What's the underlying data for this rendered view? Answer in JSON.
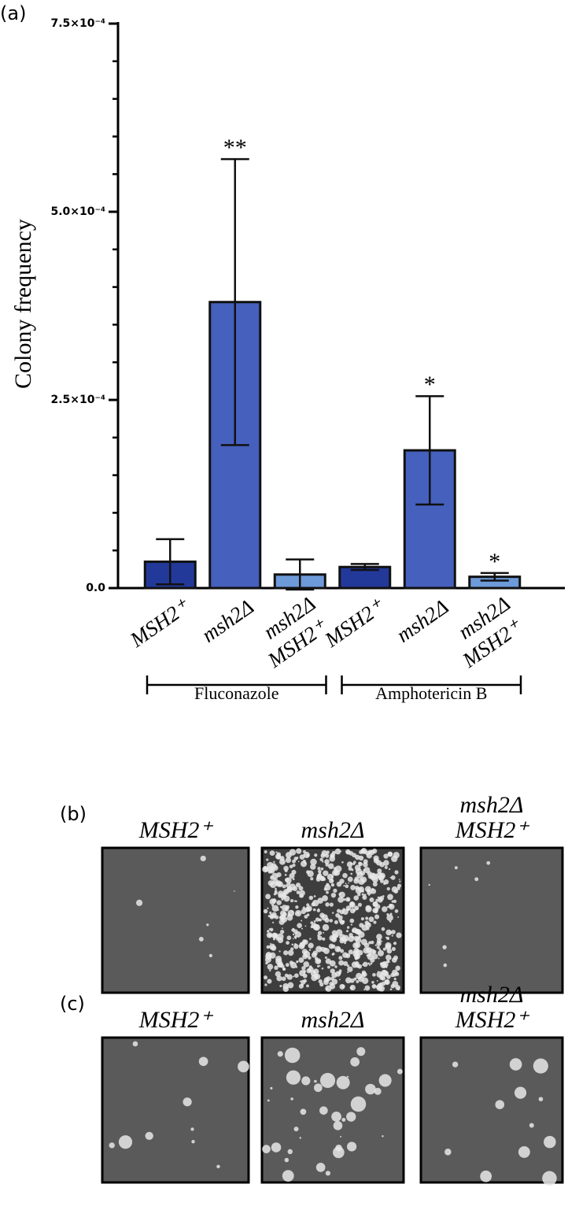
{
  "chart_data": {
    "type": "bar",
    "panel_label": "(a)",
    "ylabel": "Colony frequency",
    "categories": [
      [
        "MSH2⁺"
      ],
      [
        "msh2Δ"
      ],
      [
        "msh2Δ",
        "MSH2⁺"
      ],
      [
        "MSH2⁺"
      ],
      [
        "msh2Δ"
      ],
      [
        "msh2Δ",
        "MSH2⁺"
      ]
    ],
    "values": [
      3.5e-05,
      0.00038,
      1.8e-05,
      2.8e-05,
      0.000183,
      1.5e-05
    ],
    "errors": [
      3e-05,
      0.00019,
      2e-05,
      4e-06,
      7.2e-05,
      5e-06
    ],
    "colors": [
      "#22399a",
      "#4560bd",
      "#6d9ad8",
      "#22399a",
      "#4560bd",
      "#6d9ad8"
    ],
    "significance": [
      null,
      "**",
      null,
      null,
      "*",
      "*"
    ],
    "groups": [
      {
        "name": "Fluconazole",
        "count": 3
      },
      {
        "name": "Amphotericin B",
        "count": 3
      }
    ],
    "ylim": [
      0,
      0.00075
    ],
    "yticks": [
      {
        "value": 0,
        "label": "0.0"
      },
      {
        "value": 0.00025,
        "label": "2.5×10⁻⁴"
      },
      {
        "value": 0.0005,
        "label": "5.0×10⁻⁴"
      },
      {
        "value": 0.00075,
        "label": "7.5×10⁻⁴"
      }
    ],
    "yminor_ticks": [
      5e-05,
      0.0001,
      0.00015,
      0.0002,
      0.0003,
      0.00035,
      0.0004,
      0.00045,
      0.00055,
      0.0006,
      0.00065,
      0.0007
    ]
  },
  "panels": [
    {
      "label": "(b)",
      "images": [
        {
          "title": [
            "MSH2⁺"
          ]
        },
        {
          "title": [
            "msh2Δ"
          ]
        },
        {
          "title": [
            "msh2Δ",
            "MSH2⁺"
          ]
        }
      ]
    },
    {
      "label": "(c)",
      "images": [
        {
          "title": [
            "MSH2⁺"
          ]
        },
        {
          "title": [
            "msh2Δ"
          ]
        },
        {
          "title": [
            "msh2Δ",
            "MSH2⁺"
          ]
        }
      ]
    }
  ]
}
